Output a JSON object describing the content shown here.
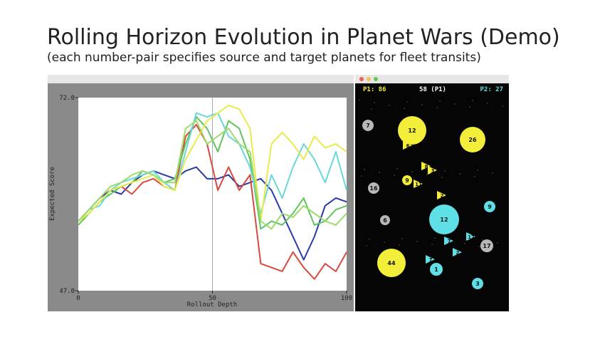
{
  "slide": {
    "title": "Rolling Horizon Evolution in Planet Wars (Demo)",
    "subtitle": "(each number-pair specifies source and target planets for fleet transits)"
  },
  "chart_data": {
    "type": "line",
    "xlabel": "Rollout Depth",
    "ylabel": "Expected Score",
    "x": [
      0,
      4,
      8,
      12,
      16,
      20,
      24,
      28,
      32,
      36,
      40,
      44,
      48,
      52,
      56,
      60,
      64,
      68,
      72,
      76,
      80,
      84,
      88,
      92,
      96,
      100
    ],
    "xlim": [
      0,
      100
    ],
    "xticks": [
      0,
      50,
      100
    ],
    "ylim": [
      47,
      72
    ],
    "yticks": [
      {
        "value": 47,
        "label": "47.0"
      },
      {
        "value": 72,
        "label": "72.0"
      }
    ],
    "series": [
      {
        "color": "#2a3aa8",
        "values": [
          56,
          57.5,
          59,
          60,
          59.5,
          61,
          62,
          62.5,
          62,
          61.5,
          62.5,
          63,
          61.5,
          61.5,
          62,
          60.5,
          61,
          61.5,
          60,
          57,
          54,
          51,
          54,
          58,
          59,
          58.5
        ]
      },
      {
        "color": "#d9483f",
        "values": [
          56,
          57,
          58.5,
          60,
          60.5,
          59.5,
          61,
          61.5,
          60.5,
          60,
          67,
          68.5,
          66,
          60,
          63,
          60,
          62,
          50.5,
          50,
          49.5,
          52,
          50,
          48.5,
          50.5,
          49.5,
          52
        ]
      },
      {
        "color": "#5fc45f",
        "values": [
          55.5,
          57,
          58.5,
          59.5,
          60.5,
          61,
          62.5,
          62,
          61,
          61.5,
          66,
          69.5,
          68,
          65,
          69,
          68,
          64,
          55,
          56,
          55.5,
          57,
          59,
          55.5,
          56,
          57.5,
          58
        ]
      },
      {
        "color": "#6ad8d8",
        "values": [
          56,
          57.5,
          58,
          60,
          61,
          61.5,
          62,
          62.5,
          61,
          60,
          65,
          70,
          69.5,
          70,
          67,
          66,
          63,
          57,
          62,
          59,
          63,
          66,
          64,
          61,
          65,
          60
        ]
      },
      {
        "color": "#e8ea4a",
        "values": [
          56,
          57,
          58.5,
          60,
          60.5,
          61,
          61.5,
          62,
          60.5,
          60,
          64,
          66.5,
          69,
          70,
          71,
          70.5,
          68,
          56,
          66,
          67.5,
          66,
          64,
          67,
          65.5,
          66,
          65
        ]
      },
      {
        "color": "#9edc6a",
        "values": [
          56,
          57.5,
          59,
          60.5,
          61,
          62,
          62.5,
          62,
          61,
          61,
          68,
          69,
          66,
          67,
          68,
          66,
          65,
          56,
          55,
          57,
          56.5,
          58,
          57,
          56,
          55.5,
          57
        ]
      }
    ]
  },
  "game": {
    "header": {
      "p1": "P1: 86",
      "turn": "58 (P1)",
      "p2": "P2: 27"
    },
    "colors": {
      "yellow": "#f2ee3a",
      "cyan": "#5ee0e6",
      "neutral": "#b8b8b8"
    },
    "planets": [
      {
        "label": "12",
        "owner": "yellow"
      },
      {
        "label": "26",
        "owner": "yellow"
      },
      {
        "label": "7",
        "owner": "neutral"
      },
      {
        "label": "16",
        "owner": "neutral"
      },
      {
        "label": "6",
        "owner": "neutral"
      },
      {
        "label": "9",
        "owner": "yellow"
      },
      {
        "label": "12",
        "owner": "cyan"
      },
      {
        "label": "9",
        "owner": "cyan"
      },
      {
        "label": "17",
        "owner": "neutral"
      },
      {
        "label": "44",
        "owner": "yellow"
      },
      {
        "label": "3",
        "owner": "cyan"
      },
      {
        "label": "1",
        "owner": "cyan"
      }
    ],
    "fleets": [
      {
        "label": "6",
        "owner": "yellow"
      },
      {
        "label": "8",
        "owner": "yellow"
      },
      {
        "label": "3",
        "owner": "yellow"
      },
      {
        "label": "11",
        "owner": "yellow"
      },
      {
        "label": "2",
        "owner": "yellow"
      },
      {
        "label": "17",
        "owner": "cyan"
      },
      {
        "label": "7",
        "owner": "cyan"
      },
      {
        "label": "2",
        "owner": "cyan"
      },
      {
        "label": "7",
        "owner": "cyan"
      }
    ]
  }
}
